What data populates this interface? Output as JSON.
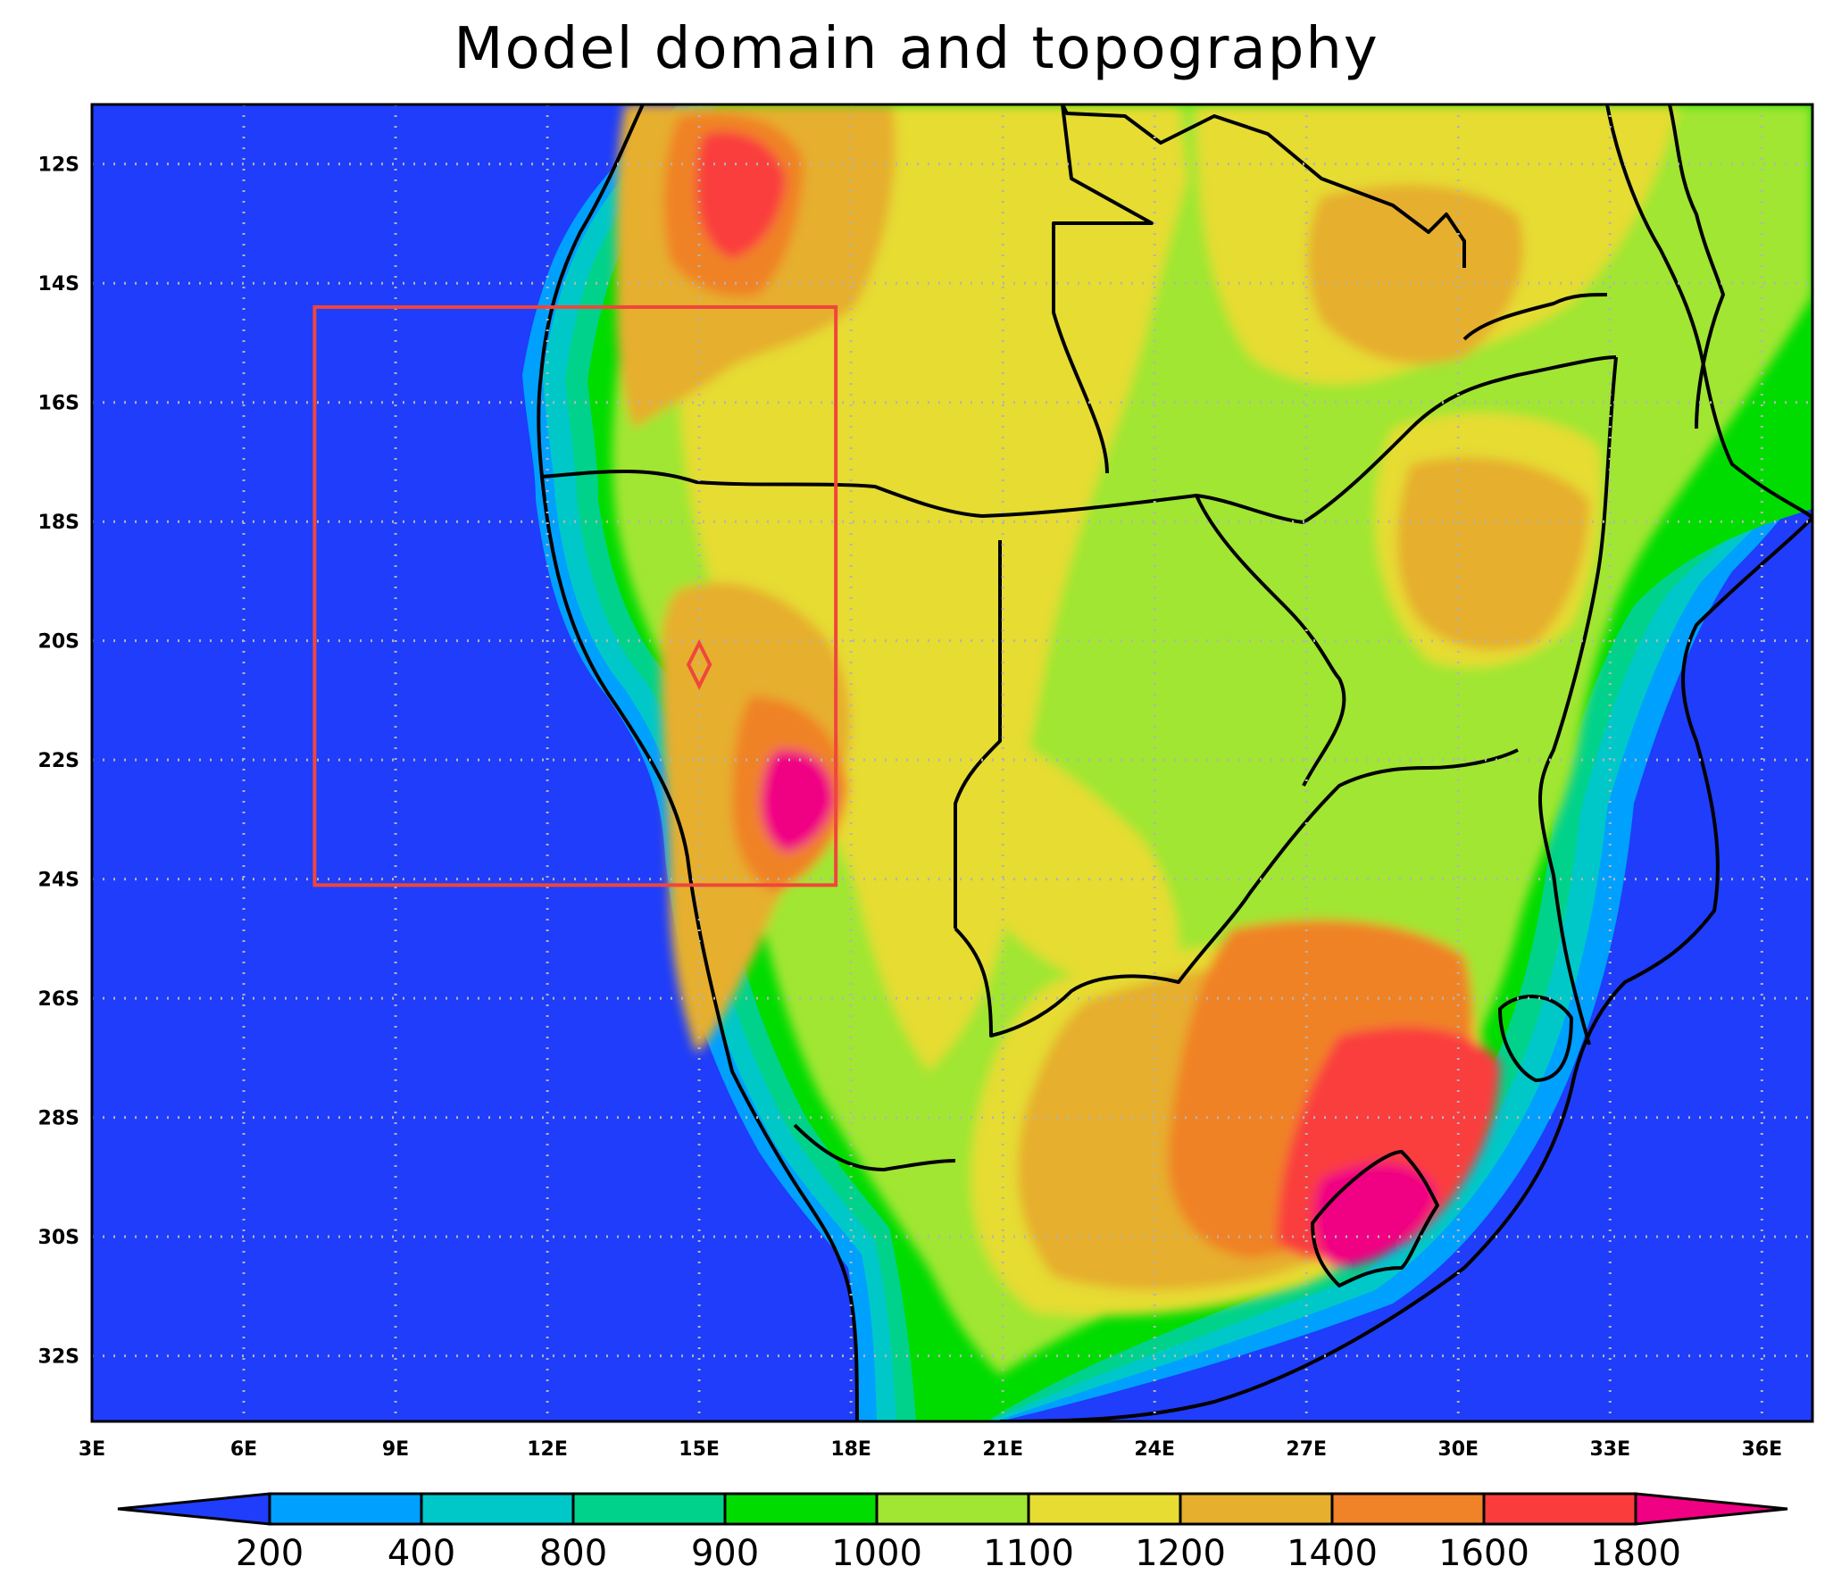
{
  "title": "Model domain and topography",
  "map": {
    "lon_range": [
      3,
      37
    ],
    "lat_range": [
      -33.1,
      -11
    ],
    "lon_ticks": [
      "3E",
      "6E",
      "9E",
      "12E",
      "15E",
      "18E",
      "21E",
      "24E",
      "27E",
      "30E",
      "33E",
      "36E"
    ],
    "lat_ticks": [
      "12S",
      "14S",
      "16S",
      "18S",
      "20S",
      "22S",
      "24S",
      "26S",
      "28S",
      "30S",
      "32S"
    ],
    "grid": "dotted",
    "ocean_color": "#1f3dfa",
    "inner_domain_box": {
      "lon": [
        7.4,
        17.7
      ],
      "lat": [
        -24.1,
        -14.4
      ],
      "color": "#f0463c"
    },
    "site_marker": {
      "lon": 15.0,
      "lat": -20.4,
      "shape": "diamond",
      "color": "#f0463c"
    }
  },
  "colorbar": {
    "labels": [
      "200",
      "400",
      "800",
      "900",
      "1000",
      "1100",
      "1200",
      "1400",
      "1600",
      "1800"
    ],
    "colors": [
      "#1f3dfa",
      "#00a0ff",
      "#00c8c8",
      "#00d28c",
      "#00dc00",
      "#a0e632",
      "#e6dc32",
      "#e6af2d",
      "#f08228",
      "#fa3c3c",
      "#f00082"
    ]
  }
}
